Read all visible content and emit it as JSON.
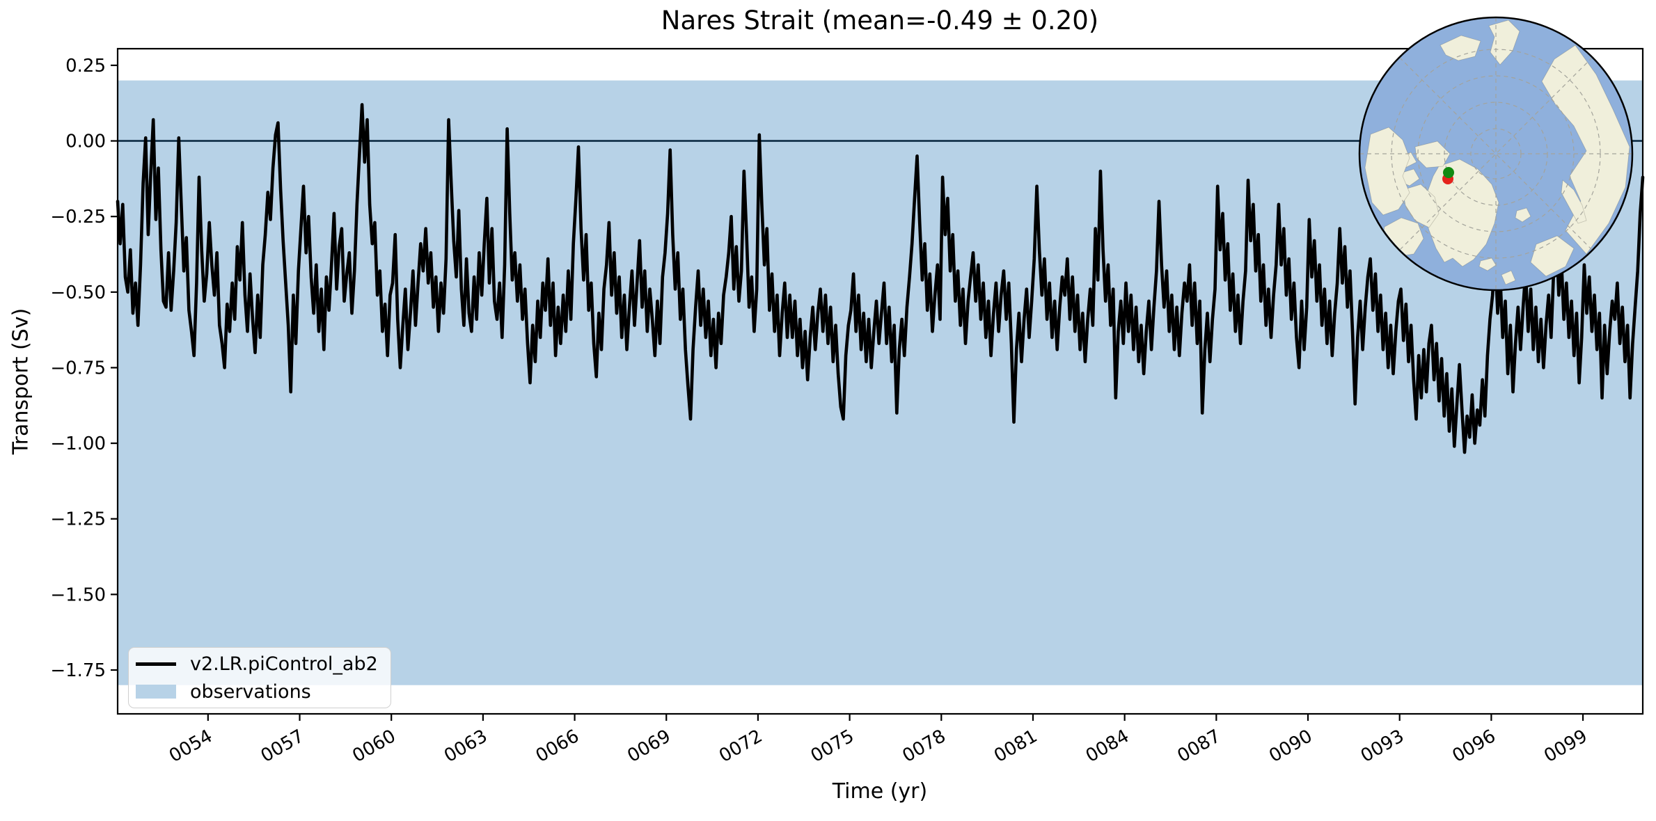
{
  "figure": {
    "title": "Nares Strait (mean=-0.49 ± 0.20)"
  },
  "axes": {
    "xlabel": "Time (yr)",
    "ylabel": "Transport (Sv)",
    "xtick_labels": [
      "0054",
      "0057",
      "0060",
      "0063",
      "0066",
      "0069",
      "0072",
      "0075",
      "0078",
      "0081",
      "0084",
      "0087",
      "0090",
      "0093",
      "0096",
      "0099"
    ],
    "ytick_labels": [
      "0.25",
      "0.00",
      "−0.25",
      "−0.50",
      "−0.75",
      "−1.00",
      "−1.25",
      "−1.50",
      "−1.75"
    ]
  },
  "legend": {
    "entries": [
      {
        "label": "v2.LR.piControl_ab2",
        "swatch": "line"
      },
      {
        "label": "observations",
        "swatch": "patch"
      }
    ]
  },
  "colors": {
    "series_line": "#000000",
    "observations_band": "#b7d2e7",
    "zero_line": "#14324a",
    "spine": "#000000",
    "inset_ocean": "#8fb0dc",
    "inset_land": "#f0efdb",
    "inset_graticule": "#a3a39b",
    "inset_border": "#000000",
    "marker_green": "#128a12",
    "marker_red": "#e5231c"
  },
  "chart_data": {
    "type": "line",
    "title": "Nares Strait (mean=-0.49 ± 0.20)",
    "xlabel": "Time (yr)",
    "ylabel": "Transport (Sv)",
    "mean": -0.49,
    "std": 0.2,
    "xlim": [
      51.042,
      100.958
    ],
    "ylim": [
      -1.895,
      0.305
    ],
    "xticks": [
      54,
      57,
      60,
      63,
      66,
      69,
      72,
      75,
      78,
      81,
      84,
      87,
      90,
      93,
      96,
      99
    ],
    "yticks": [
      0.25,
      0.0,
      -0.25,
      -0.5,
      -0.75,
      -1.0,
      -1.25,
      -1.5,
      -1.75
    ],
    "zero_line": 0.0,
    "observations_band": {
      "min": -1.8,
      "max": 0.2
    },
    "legend_position": "lower left",
    "grid": false,
    "series": [
      {
        "name": "v2.LR.piControl_ab2",
        "x_start": 51.0417,
        "x_step": 0.083333,
        "values": [
          -0.2,
          -0.34,
          -0.21,
          -0.45,
          -0.5,
          -0.36,
          -0.57,
          -0.47,
          -0.61,
          -0.41,
          -0.14,
          0.01,
          -0.31,
          -0.11,
          0.07,
          -0.26,
          -0.09,
          -0.36,
          -0.53,
          -0.55,
          -0.37,
          -0.56,
          -0.43,
          -0.27,
          0.01,
          -0.21,
          -0.43,
          -0.32,
          -0.56,
          -0.63,
          -0.71,
          -0.47,
          -0.12,
          -0.36,
          -0.53,
          -0.44,
          -0.27,
          -0.41,
          -0.51,
          -0.37,
          -0.61,
          -0.67,
          -0.75,
          -0.54,
          -0.63,
          -0.47,
          -0.59,
          -0.35,
          -0.46,
          -0.27,
          -0.51,
          -0.63,
          -0.44,
          -0.59,
          -0.7,
          -0.51,
          -0.65,
          -0.41,
          -0.31,
          -0.17,
          -0.26,
          -0.09,
          0.02,
          0.06,
          -0.16,
          -0.33,
          -0.47,
          -0.61,
          -0.83,
          -0.51,
          -0.67,
          -0.43,
          -0.29,
          -0.15,
          -0.37,
          -0.25,
          -0.45,
          -0.57,
          -0.41,
          -0.63,
          -0.49,
          -0.69,
          -0.45,
          -0.56,
          -0.41,
          -0.24,
          -0.49,
          -0.35,
          -0.29,
          -0.53,
          -0.44,
          -0.37,
          -0.57,
          -0.43,
          -0.21,
          -0.04,
          0.12,
          -0.07,
          0.07,
          -0.21,
          -0.34,
          -0.27,
          -0.51,
          -0.43,
          -0.63,
          -0.54,
          -0.71,
          -0.51,
          -0.47,
          -0.31,
          -0.59,
          -0.75,
          -0.61,
          -0.49,
          -0.69,
          -0.57,
          -0.43,
          -0.61,
          -0.47,
          -0.34,
          -0.43,
          -0.29,
          -0.47,
          -0.37,
          -0.55,
          -0.45,
          -0.63,
          -0.47,
          -0.57,
          -0.39,
          0.07,
          -0.14,
          -0.33,
          -0.45,
          -0.23,
          -0.49,
          -0.61,
          -0.39,
          -0.57,
          -0.63,
          -0.45,
          -0.59,
          -0.37,
          -0.51,
          -0.34,
          -0.19,
          -0.47,
          -0.29,
          -0.53,
          -0.59,
          -0.47,
          -0.65,
          -0.41,
          0.04,
          -0.24,
          -0.46,
          -0.37,
          -0.53,
          -0.41,
          -0.59,
          -0.49,
          -0.67,
          -0.8,
          -0.61,
          -0.73,
          -0.53,
          -0.65,
          -0.47,
          -0.56,
          -0.39,
          -0.61,
          -0.47,
          -0.71,
          -0.55,
          -0.67,
          -0.51,
          -0.63,
          -0.43,
          -0.59,
          -0.34,
          -0.19,
          -0.02,
          -0.29,
          -0.46,
          -0.31,
          -0.56,
          -0.47,
          -0.67,
          -0.78,
          -0.57,
          -0.69,
          -0.49,
          -0.41,
          -0.27,
          -0.51,
          -0.37,
          -0.57,
          -0.45,
          -0.65,
          -0.51,
          -0.69,
          -0.55,
          -0.43,
          -0.61,
          -0.47,
          -0.33,
          -0.55,
          -0.43,
          -0.63,
          -0.49,
          -0.59,
          -0.71,
          -0.53,
          -0.67,
          -0.45,
          -0.37,
          -0.24,
          -0.03,
          -0.31,
          -0.49,
          -0.37,
          -0.59,
          -0.49,
          -0.69,
          -0.81,
          -0.92,
          -0.69,
          -0.55,
          -0.43,
          -0.61,
          -0.49,
          -0.65,
          -0.53,
          -0.71,
          -0.59,
          -0.75,
          -0.57,
          -0.67,
          -0.51,
          -0.45,
          -0.37,
          -0.25,
          -0.49,
          -0.35,
          -0.53,
          -0.43,
          -0.1,
          -0.31,
          -0.55,
          -0.45,
          -0.63,
          -0.49,
          0.02,
          -0.21,
          -0.41,
          -0.29,
          -0.56,
          -0.44,
          -0.63,
          -0.51,
          -0.71,
          -0.57,
          -0.47,
          -0.65,
          -0.51,
          -0.65,
          -0.53,
          -0.71,
          -0.59,
          -0.75,
          -0.63,
          -0.79,
          -0.65,
          -0.55,
          -0.69,
          -0.57,
          -0.49,
          -0.63,
          -0.51,
          -0.67,
          -0.55,
          -0.73,
          -0.61,
          -0.77,
          -0.88,
          -0.92,
          -0.71,
          -0.61,
          -0.56,
          -0.44,
          -0.63,
          -0.51,
          -0.69,
          -0.57,
          -0.73,
          -0.59,
          -0.75,
          -0.63,
          -0.53,
          -0.67,
          -0.57,
          -0.47,
          -0.67,
          -0.55,
          -0.73,
          -0.61,
          -0.9,
          -0.69,
          -0.59,
          -0.71,
          -0.55,
          -0.45,
          -0.34,
          -0.19,
          -0.05,
          -0.27,
          -0.46,
          -0.34,
          -0.56,
          -0.44,
          -0.63,
          -0.51,
          -0.41,
          -0.59,
          -0.12,
          -0.31,
          -0.19,
          -0.43,
          -0.31,
          -0.53,
          -0.43,
          -0.61,
          -0.49,
          -0.67,
          -0.53,
          -0.45,
          -0.37,
          -0.53,
          -0.41,
          -0.59,
          -0.47,
          -0.65,
          -0.53,
          -0.71,
          -0.57,
          -0.47,
          -0.63,
          -0.51,
          -0.43,
          -0.59,
          -0.47,
          -0.67,
          -0.93,
          -0.69,
          -0.57,
          -0.73,
          -0.59,
          -0.49,
          -0.65,
          -0.53,
          -0.39,
          -0.15,
          -0.36,
          -0.51,
          -0.39,
          -0.59,
          -0.47,
          -0.65,
          -0.53,
          -0.69,
          -0.55,
          -0.45,
          -0.51,
          -0.39,
          -0.59,
          -0.45,
          -0.63,
          -0.51,
          -0.69,
          -0.57,
          -0.73,
          -0.59,
          -0.49,
          -0.61,
          -0.29,
          -0.46,
          -0.1,
          -0.36,
          -0.53,
          -0.41,
          -0.61,
          -0.49,
          -0.85,
          -0.63,
          -0.53,
          -0.67,
          -0.47,
          -0.63,
          -0.51,
          -0.69,
          -0.55,
          -0.73,
          -0.61,
          -0.77,
          -0.63,
          -0.53,
          -0.69,
          -0.55,
          -0.43,
          -0.2,
          -0.41,
          -0.55,
          -0.43,
          -0.63,
          -0.51,
          -0.69,
          -0.55,
          -0.71,
          -0.57,
          -0.47,
          -0.53,
          -0.41,
          -0.61,
          -0.47,
          -0.67,
          -0.53,
          -0.9,
          -0.69,
          -0.57,
          -0.73,
          -0.59,
          -0.49,
          -0.15,
          -0.36,
          -0.24,
          -0.46,
          -0.34,
          -0.56,
          -0.44,
          -0.63,
          -0.51,
          -0.67,
          -0.53,
          -0.43,
          -0.13,
          -0.33,
          -0.21,
          -0.43,
          -0.31,
          -0.53,
          -0.41,
          -0.61,
          -0.49,
          -0.65,
          -0.51,
          -0.41,
          -0.21,
          -0.41,
          -0.29,
          -0.51,
          -0.39,
          -0.59,
          -0.47,
          -0.65,
          -0.75,
          -0.53,
          -0.69,
          -0.55,
          -0.26,
          -0.45,
          -0.33,
          -0.53,
          -0.41,
          -0.61,
          -0.49,
          -0.67,
          -0.53,
          -0.71,
          -0.57,
          -0.47,
          -0.29,
          -0.47,
          -0.35,
          -0.55,
          -0.43,
          -0.63,
          -0.87,
          -0.65,
          -0.53,
          -0.69,
          -0.55,
          -0.45,
          -0.39,
          -0.56,
          -0.44,
          -0.63,
          -0.51,
          -0.69,
          -0.57,
          -0.75,
          -0.61,
          -0.77,
          -0.63,
          -0.53,
          -0.49,
          -0.66,
          -0.54,
          -0.73,
          -0.61,
          -0.79,
          -0.92,
          -0.71,
          -0.85,
          -0.69,
          -0.83,
          -0.67,
          -0.61,
          -0.79,
          -0.67,
          -0.86,
          -0.72,
          -0.91,
          -0.77,
          -0.96,
          -0.82,
          -1.01,
          -0.87,
          -0.74,
          -0.89,
          -1.03,
          -0.91,
          -0.98,
          -0.84,
          -1.0,
          -0.89,
          -0.94,
          -0.79,
          -0.91,
          -0.71,
          -0.59,
          -0.51,
          -0.37,
          -0.57,
          -0.45,
          -0.65,
          -0.53,
          -0.77,
          -0.61,
          -0.83,
          -0.67,
          -0.55,
          -0.69,
          -0.55,
          -0.43,
          -0.63,
          -0.49,
          -0.69,
          -0.55,
          -0.73,
          -0.59,
          -0.75,
          -0.61,
          -0.51,
          -0.65,
          -0.43,
          -0.29,
          -0.51,
          -0.39,
          -0.59,
          -0.47,
          -0.65,
          -0.53,
          -0.71,
          -0.57,
          -0.8,
          -0.65,
          -0.41,
          -0.57,
          -0.45,
          -0.63,
          -0.51,
          -0.69,
          -0.57,
          -0.85,
          -0.61,
          -0.77,
          -0.63,
          -0.53,
          -0.59,
          -0.47,
          -0.67,
          -0.55,
          -0.73,
          -0.61,
          -0.85,
          -0.67,
          -0.55,
          -0.43,
          -0.24,
          -0.12
        ]
      }
    ]
  }
}
